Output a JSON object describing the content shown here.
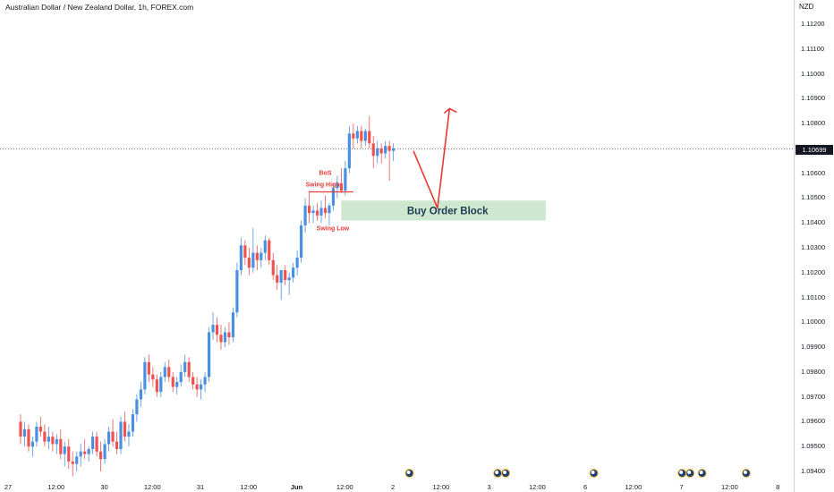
{
  "header": {
    "title": "Australian Dollar / New Zealand Dollar, 1h, FOREX.com",
    "currency": "NZD",
    "last_price": "1.10699"
  },
  "annotations": {
    "bos": "BoS",
    "swing_high": "Swing High",
    "swing_low": "Swing Low",
    "order_block": "Buy Order Block"
  },
  "colors": {
    "bull": "#4a90e2",
    "bear": "#ef5350",
    "annotation": "#e53935",
    "order_block_fill": "#c8e6c9",
    "text": "#131722"
  },
  "chart_data": {
    "type": "candlestick",
    "title": "Australian Dollar / New Zealand Dollar, 1h, FOREX.com",
    "ylabel": "NZD",
    "ylim": [
      1.0938,
      1.1125
    ],
    "y_ticks": [
      "1.11200",
      "1.11100",
      "1.11000",
      "1.10900",
      "1.10800",
      "1.10700",
      "1.10600",
      "1.10500",
      "1.10400",
      "1.10300",
      "1.10200",
      "1.10100",
      "1.10000",
      "1.09900",
      "1.09800",
      "1.09700",
      "1.09600",
      "1.09500",
      "1.09400"
    ],
    "x_ticks": [
      {
        "label": "27",
        "pos": 0
      },
      {
        "label": "12:00",
        "pos": 12
      },
      {
        "label": "30",
        "pos": 24
      },
      {
        "label": "12:00",
        "pos": 36
      },
      {
        "label": "31",
        "pos": 48
      },
      {
        "label": "12:00",
        "pos": 60
      },
      {
        "label": "Jun",
        "pos": 72
      },
      {
        "label": "12:00",
        "pos": 84
      },
      {
        "label": "2",
        "pos": 96
      },
      {
        "label": "12:00",
        "pos": 108
      },
      {
        "label": "3",
        "pos": 120
      },
      {
        "label": "12:00",
        "pos": 132
      },
      {
        "label": "6",
        "pos": 144
      },
      {
        "label": "12:00",
        "pos": 156
      },
      {
        "label": "7",
        "pos": 168
      },
      {
        "label": "12:00",
        "pos": 180
      },
      {
        "label": "8",
        "pos": 192
      }
    ],
    "last_price": 1.10699,
    "order_block": {
      "x_start": 80,
      "x_end": 131,
      "y_low": 1.1041,
      "y_high": 1.1049,
      "label": "Buy Order Block"
    },
    "projection": [
      {
        "x": 98,
        "y": 1.1069
      },
      {
        "x": 104,
        "y": 1.1046
      },
      {
        "x": 107,
        "y": 1.1086
      }
    ],
    "bos_level": {
      "x_start": 72,
      "x_end": 83,
      "y": 1.10525
    },
    "event_markers": [
      97,
      119,
      121,
      143,
      165,
      167,
      170,
      181
    ],
    "candles": [
      [
        1.096,
        1.0963,
        1.0951,
        1.0954
      ],
      [
        1.0954,
        1.096,
        1.095,
        1.0957
      ],
      [
        1.0957,
        1.0959,
        1.0948,
        1.095
      ],
      [
        1.095,
        1.0954,
        1.0946,
        1.0952
      ],
      [
        1.0952,
        1.096,
        1.095,
        1.0958
      ],
      [
        1.0958,
        1.0962,
        1.0954,
        1.0956
      ],
      [
        1.0956,
        1.0959,
        1.095,
        1.0952
      ],
      [
        1.0952,
        1.0958,
        1.0949,
        1.0954
      ],
      [
        1.0954,
        1.0956,
        1.0948,
        1.0951
      ],
      [
        1.0951,
        1.0955,
        1.0947,
        1.0953
      ],
      [
        1.0953,
        1.0957,
        1.0945,
        1.0947
      ],
      [
        1.0947,
        1.0952,
        1.0942,
        1.095
      ],
      [
        1.095,
        1.0953,
        1.0941,
        1.0944
      ],
      [
        1.0944,
        1.0948,
        1.0938,
        1.0943
      ],
      [
        1.0943,
        1.0948,
        1.094,
        1.0946
      ],
      [
        1.0946,
        1.0951,
        1.0942,
        1.0948
      ],
      [
        1.0948,
        1.0953,
        1.0945,
        1.0947
      ],
      [
        1.0947,
        1.095,
        1.0944,
        1.0949
      ],
      [
        1.0949,
        1.0956,
        1.0947,
        1.0954
      ],
      [
        1.0954,
        1.0956,
        1.0946,
        1.0948
      ],
      [
        1.0948,
        1.0952,
        1.094,
        1.0945
      ],
      [
        1.0945,
        1.0953,
        1.0943,
        1.0951
      ],
      [
        1.0951,
        1.0958,
        1.0948,
        1.0956
      ],
      [
        1.0956,
        1.0961,
        1.095,
        1.0952
      ],
      [
        1.0952,
        1.0956,
        1.0947,
        1.0949
      ],
      [
        1.0949,
        1.0962,
        1.0947,
        1.096
      ],
      [
        1.096,
        1.0964,
        1.0952,
        1.0954
      ],
      [
        1.0954,
        1.0959,
        1.095,
        1.0956
      ],
      [
        1.0956,
        1.0965,
        1.0954,
        1.0963
      ],
      [
        1.0963,
        1.0971,
        1.096,
        1.0969
      ],
      [
        1.0969,
        1.0976,
        1.0966,
        1.0973
      ],
      [
        1.0973,
        1.0986,
        1.0971,
        1.0984
      ],
      [
        1.0984,
        1.0987,
        1.0976,
        1.0979
      ],
      [
        1.0979,
        1.0982,
        1.0974,
        1.0977
      ],
      [
        1.0977,
        1.0979,
        1.097,
        1.0972
      ],
      [
        1.0972,
        1.098,
        1.097,
        1.0978
      ],
      [
        1.0978,
        1.0984,
        1.0976,
        1.0982
      ],
      [
        1.0982,
        1.0985,
        1.0976,
        1.0978
      ],
      [
        1.0978,
        1.098,
        1.0972,
        1.0974
      ],
      [
        1.0974,
        1.0978,
        1.0971,
        1.0976
      ],
      [
        1.0976,
        1.0983,
        1.0974,
        1.098
      ],
      [
        1.098,
        1.0987,
        1.0978,
        1.0984
      ],
      [
        1.0984,
        1.0986,
        1.0976,
        1.0978
      ],
      [
        1.0978,
        1.098,
        1.0973,
        1.0975
      ],
      [
        1.0975,
        1.0978,
        1.097,
        1.0973
      ],
      [
        1.0973,
        1.0977,
        1.0969,
        1.0975
      ],
      [
        1.0975,
        1.098,
        1.0972,
        1.0978
      ],
      [
        1.0978,
        1.0998,
        1.0976,
        1.0996
      ],
      [
        1.0996,
        1.1004,
        1.0993,
        1.0999
      ],
      [
        1.0999,
        1.1002,
        1.0992,
        1.0995
      ],
      [
        1.0995,
        1.0999,
        1.0989,
        1.0992
      ],
      [
        1.0992,
        1.0998,
        1.099,
        1.0996
      ],
      [
        1.0996,
        1.1,
        1.0991,
        1.0994
      ],
      [
        1.0994,
        1.1006,
        1.0992,
        1.1004
      ],
      [
        1.1004,
        1.1024,
        1.1002,
        1.1021
      ],
      [
        1.1021,
        1.1034,
        1.1019,
        1.1031
      ],
      [
        1.1031,
        1.1033,
        1.1023,
        1.1026
      ],
      [
        1.1026,
        1.103,
        1.1019,
        1.1022
      ],
      [
        1.1022,
        1.1038,
        1.102,
        1.1028
      ],
      [
        1.1028,
        1.1031,
        1.1021,
        1.1025
      ],
      [
        1.1025,
        1.103,
        1.1022,
        1.1028
      ],
      [
        1.1028,
        1.1035,
        1.1025,
        1.1033
      ],
      [
        1.1033,
        1.1034,
        1.1023,
        1.1025
      ],
      [
        1.1025,
        1.1028,
        1.1017,
        1.1019
      ],
      [
        1.1019,
        1.1023,
        1.1013,
        1.1016
      ],
      [
        1.1016,
        1.102,
        1.1009,
        1.1021
      ],
      [
        1.1021,
        1.1023,
        1.1015,
        1.1017
      ],
      [
        1.1017,
        1.102,
        1.1011,
        1.1018
      ],
      [
        1.1018,
        1.1024,
        1.1016,
        1.1022
      ],
      [
        1.1022,
        1.1029,
        1.1019,
        1.1026
      ],
      [
        1.1026,
        1.1041,
        1.1024,
        1.1039
      ],
      [
        1.1039,
        1.105,
        1.1036,
        1.1047
      ],
      [
        1.1047,
        1.1053,
        1.104,
        1.1044
      ],
      [
        1.1044,
        1.1047,
        1.104,
        1.1045
      ],
      [
        1.1045,
        1.1048,
        1.1041,
        1.1043
      ],
      [
        1.1043,
        1.1049,
        1.104,
        1.1046
      ],
      [
        1.1046,
        1.1051,
        1.1042,
        1.1044
      ],
      [
        1.1044,
        1.1048,
        1.1039,
        1.1047
      ],
      [
        1.1047,
        1.1056,
        1.1045,
        1.1054
      ],
      [
        1.1054,
        1.1059,
        1.105,
        1.1056
      ],
      [
        1.1056,
        1.1062,
        1.1052,
        1.1053
      ],
      [
        1.1053,
        1.1065,
        1.1051,
        1.1062
      ],
      [
        1.1062,
        1.1079,
        1.106,
        1.1076
      ],
      [
        1.1076,
        1.108,
        1.107,
        1.1074
      ],
      [
        1.1074,
        1.1079,
        1.1072,
        1.1077
      ],
      [
        1.1077,
        1.1079,
        1.107,
        1.1073
      ],
      [
        1.1073,
        1.1078,
        1.1071,
        1.1077
      ],
      [
        1.1077,
        1.1083,
        1.107,
        1.1072
      ],
      [
        1.1072,
        1.1075,
        1.1062,
        1.1067
      ],
      [
        1.1067,
        1.1073,
        1.1064,
        1.107
      ],
      [
        1.107,
        1.1072,
        1.1064,
        1.1068
      ],
      [
        1.1068,
        1.1073,
        1.1066,
        1.1071
      ],
      [
        1.1071,
        1.1073,
        1.1057,
        1.1069
      ],
      [
        1.1069,
        1.1072,
        1.1065,
        1.107
      ]
    ]
  }
}
